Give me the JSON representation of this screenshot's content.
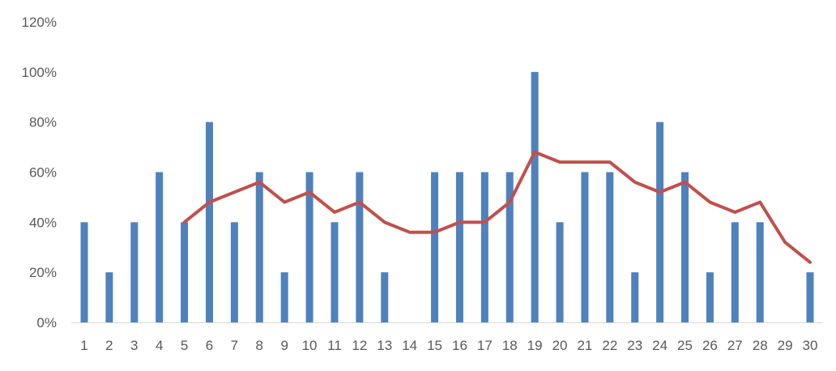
{
  "chart_data": {
    "type": "bar",
    "title": "",
    "xlabel": "",
    "ylabel": "",
    "ylim": [
      0,
      120
    ],
    "yticks": [
      "0%",
      "20%",
      "40%",
      "60%",
      "80%",
      "100%",
      "120%"
    ],
    "grid": false,
    "legend": "none",
    "categories": [
      "1",
      "2",
      "3",
      "4",
      "5",
      "6",
      "7",
      "8",
      "9",
      "10",
      "11",
      "12",
      "13",
      "14",
      "15",
      "16",
      "17",
      "18",
      "19",
      "20",
      "21",
      "22",
      "23",
      "24",
      "25",
      "26",
      "27",
      "28",
      "29",
      "30"
    ],
    "series": [
      {
        "type": "bar",
        "color": "#4F81BD",
        "values": [
          40,
          20,
          40,
          60,
          40,
          80,
          40,
          60,
          20,
          60,
          40,
          60,
          20,
          0,
          60,
          60,
          60,
          60,
          100,
          40,
          60,
          60,
          20,
          80,
          60,
          20,
          40,
          40,
          0,
          20
        ]
      },
      {
        "type": "line",
        "color": "#C0504D",
        "values": [
          null,
          null,
          null,
          null,
          40,
          48,
          52,
          56,
          48,
          52,
          44,
          48,
          40,
          36,
          36,
          40,
          40,
          48,
          68,
          64,
          64,
          64,
          56,
          52,
          56,
          48,
          44,
          48,
          32,
          24
        ]
      }
    ]
  }
}
